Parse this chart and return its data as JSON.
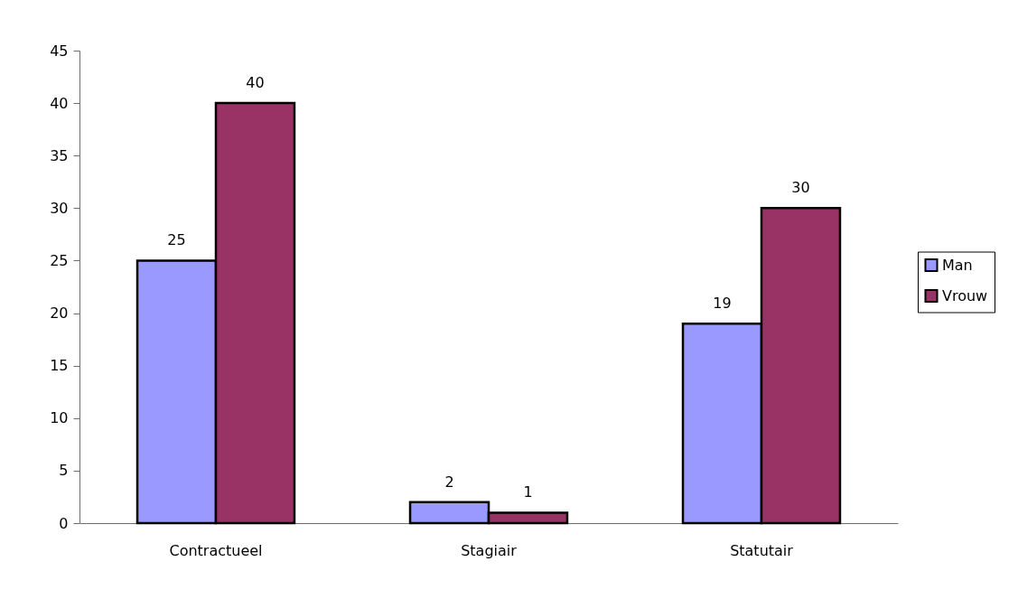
{
  "chart_data": {
    "type": "bar",
    "categories": [
      "Contractueel",
      "Stagiair",
      "Statutair"
    ],
    "series": [
      {
        "name": "Man",
        "color": "#9999ff",
        "values": [
          25,
          2,
          19
        ]
      },
      {
        "name": "Vrouw",
        "color": "#993366",
        "values": [
          40,
          1,
          30
        ]
      }
    ],
    "ylim": [
      0,
      45
    ],
    "yticks": [
      0,
      5,
      10,
      15,
      20,
      25,
      30,
      35,
      40,
      45
    ],
    "grid": false,
    "legend": "right",
    "data_labels": true
  }
}
